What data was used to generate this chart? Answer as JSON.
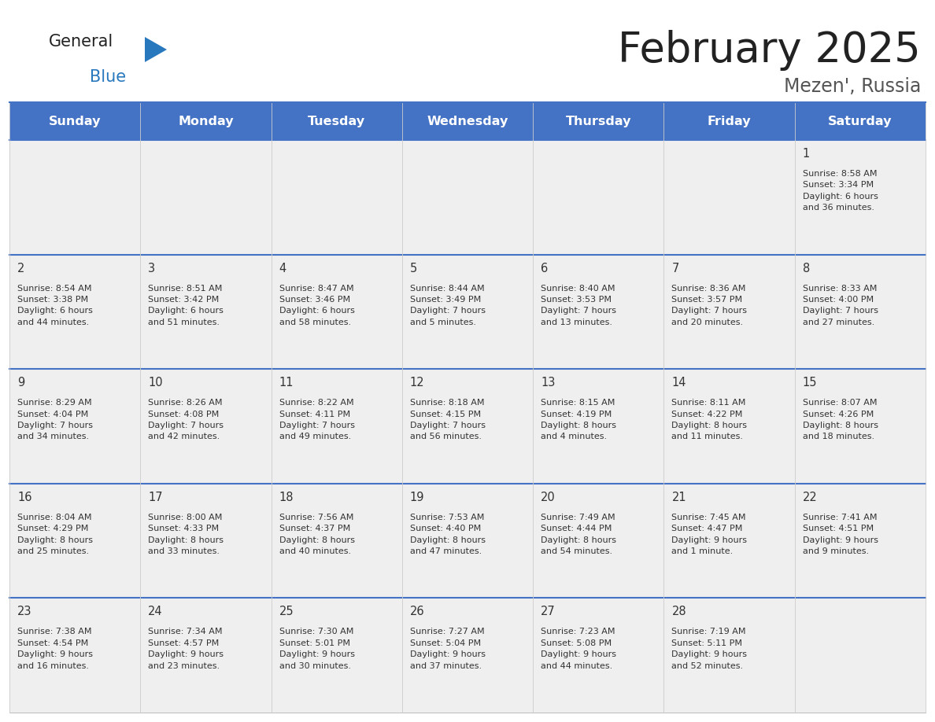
{
  "title": "February 2025",
  "subtitle": "Mezen', Russia",
  "header_color": "#4472C4",
  "header_text_color": "#FFFFFF",
  "day_names": [
    "Sunday",
    "Monday",
    "Tuesday",
    "Wednesday",
    "Thursday",
    "Friday",
    "Saturday"
  ],
  "title_color": "#222222",
  "subtitle_color": "#555555",
  "cell_bg_color": "#EFEFEF",
  "day_number_color": "#333333",
  "info_text_color": "#333333",
  "border_color": "#4472C4",
  "logo_general_color": "#222222",
  "logo_blue_color": "#2878BE",
  "logo_triangle_color": "#2878BE",
  "weeks": [
    [
      {
        "day": null,
        "info": ""
      },
      {
        "day": null,
        "info": ""
      },
      {
        "day": null,
        "info": ""
      },
      {
        "day": null,
        "info": ""
      },
      {
        "day": null,
        "info": ""
      },
      {
        "day": null,
        "info": ""
      },
      {
        "day": 1,
        "info": "Sunrise: 8:58 AM\nSunset: 3:34 PM\nDaylight: 6 hours\nand 36 minutes."
      }
    ],
    [
      {
        "day": 2,
        "info": "Sunrise: 8:54 AM\nSunset: 3:38 PM\nDaylight: 6 hours\nand 44 minutes."
      },
      {
        "day": 3,
        "info": "Sunrise: 8:51 AM\nSunset: 3:42 PM\nDaylight: 6 hours\nand 51 minutes."
      },
      {
        "day": 4,
        "info": "Sunrise: 8:47 AM\nSunset: 3:46 PM\nDaylight: 6 hours\nand 58 minutes."
      },
      {
        "day": 5,
        "info": "Sunrise: 8:44 AM\nSunset: 3:49 PM\nDaylight: 7 hours\nand 5 minutes."
      },
      {
        "day": 6,
        "info": "Sunrise: 8:40 AM\nSunset: 3:53 PM\nDaylight: 7 hours\nand 13 minutes."
      },
      {
        "day": 7,
        "info": "Sunrise: 8:36 AM\nSunset: 3:57 PM\nDaylight: 7 hours\nand 20 minutes."
      },
      {
        "day": 8,
        "info": "Sunrise: 8:33 AM\nSunset: 4:00 PM\nDaylight: 7 hours\nand 27 minutes."
      }
    ],
    [
      {
        "day": 9,
        "info": "Sunrise: 8:29 AM\nSunset: 4:04 PM\nDaylight: 7 hours\nand 34 minutes."
      },
      {
        "day": 10,
        "info": "Sunrise: 8:26 AM\nSunset: 4:08 PM\nDaylight: 7 hours\nand 42 minutes."
      },
      {
        "day": 11,
        "info": "Sunrise: 8:22 AM\nSunset: 4:11 PM\nDaylight: 7 hours\nand 49 minutes."
      },
      {
        "day": 12,
        "info": "Sunrise: 8:18 AM\nSunset: 4:15 PM\nDaylight: 7 hours\nand 56 minutes."
      },
      {
        "day": 13,
        "info": "Sunrise: 8:15 AM\nSunset: 4:19 PM\nDaylight: 8 hours\nand 4 minutes."
      },
      {
        "day": 14,
        "info": "Sunrise: 8:11 AM\nSunset: 4:22 PM\nDaylight: 8 hours\nand 11 minutes."
      },
      {
        "day": 15,
        "info": "Sunrise: 8:07 AM\nSunset: 4:26 PM\nDaylight: 8 hours\nand 18 minutes."
      }
    ],
    [
      {
        "day": 16,
        "info": "Sunrise: 8:04 AM\nSunset: 4:29 PM\nDaylight: 8 hours\nand 25 minutes."
      },
      {
        "day": 17,
        "info": "Sunrise: 8:00 AM\nSunset: 4:33 PM\nDaylight: 8 hours\nand 33 minutes."
      },
      {
        "day": 18,
        "info": "Sunrise: 7:56 AM\nSunset: 4:37 PM\nDaylight: 8 hours\nand 40 minutes."
      },
      {
        "day": 19,
        "info": "Sunrise: 7:53 AM\nSunset: 4:40 PM\nDaylight: 8 hours\nand 47 minutes."
      },
      {
        "day": 20,
        "info": "Sunrise: 7:49 AM\nSunset: 4:44 PM\nDaylight: 8 hours\nand 54 minutes."
      },
      {
        "day": 21,
        "info": "Sunrise: 7:45 AM\nSunset: 4:47 PM\nDaylight: 9 hours\nand 1 minute."
      },
      {
        "day": 22,
        "info": "Sunrise: 7:41 AM\nSunset: 4:51 PM\nDaylight: 9 hours\nand 9 minutes."
      }
    ],
    [
      {
        "day": 23,
        "info": "Sunrise: 7:38 AM\nSunset: 4:54 PM\nDaylight: 9 hours\nand 16 minutes."
      },
      {
        "day": 24,
        "info": "Sunrise: 7:34 AM\nSunset: 4:57 PM\nDaylight: 9 hours\nand 23 minutes."
      },
      {
        "day": 25,
        "info": "Sunrise: 7:30 AM\nSunset: 5:01 PM\nDaylight: 9 hours\nand 30 minutes."
      },
      {
        "day": 26,
        "info": "Sunrise: 7:27 AM\nSunset: 5:04 PM\nDaylight: 9 hours\nand 37 minutes."
      },
      {
        "day": 27,
        "info": "Sunrise: 7:23 AM\nSunset: 5:08 PM\nDaylight: 9 hours\nand 44 minutes."
      },
      {
        "day": 28,
        "info": "Sunrise: 7:19 AM\nSunset: 5:11 PM\nDaylight: 9 hours\nand 52 minutes."
      },
      {
        "day": null,
        "info": ""
      }
    ]
  ]
}
